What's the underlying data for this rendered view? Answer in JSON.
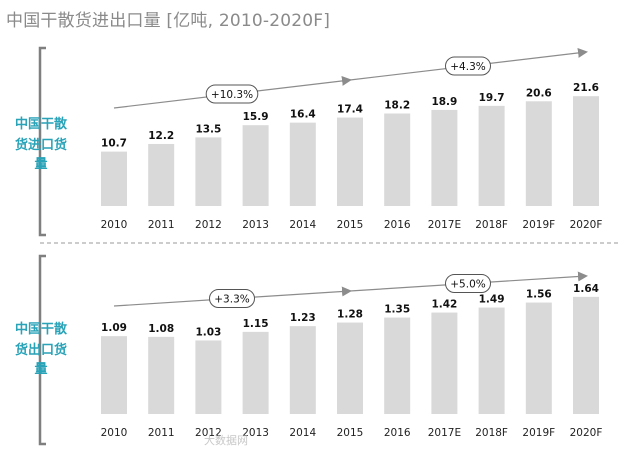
{
  "title": "中国干散货进出口量 [亿吨, 2010-2020F]",
  "watermark": "大数据网",
  "colors": {
    "bar": "#d9d9d9",
    "side_label": "#29a3b8",
    "arrow": "#8c8c8c",
    "bracket": "#7f7f7f",
    "divider": "#9a9a9a"
  },
  "chart_data": [
    {
      "type": "bar",
      "title": "中国干散货进口货量",
      "side_label": "中国干散货进口货量",
      "categories": [
        "2010",
        "2011",
        "2012",
        "2013",
        "2014",
        "2015",
        "2016",
        "2017E",
        "2018F",
        "2019F",
        "2020F"
      ],
      "values": [
        10.7,
        12.2,
        13.5,
        15.9,
        16.4,
        17.4,
        18.2,
        18.9,
        19.7,
        20.6,
        21.6
      ],
      "value_labels": [
        "10.7",
        "12.2",
        "13.5",
        "15.9",
        "16.4",
        "17.4",
        "18.2",
        "18.9",
        "19.7",
        "20.6",
        "21.6"
      ],
      "ylim": [
        0,
        24
      ],
      "growth": [
        {
          "label": "+10.3%",
          "from": "2010",
          "to": "2015"
        },
        {
          "label": "+4.3%",
          "from": "2015",
          "to": "2020F"
        }
      ]
    },
    {
      "type": "bar",
      "title": "中国干散货出口货量",
      "side_label": "中国干散货出口货量",
      "categories": [
        "2010",
        "2011",
        "2012",
        "2013",
        "2014",
        "2015",
        "2016",
        "2017E",
        "2018F",
        "2019F",
        "2020F"
      ],
      "values": [
        1.09,
        1.08,
        1.03,
        1.15,
        1.23,
        1.28,
        1.35,
        1.42,
        1.49,
        1.56,
        1.64
      ],
      "value_labels": [
        "1.09",
        "1.08",
        "1.03",
        "1.15",
        "1.23",
        "1.28",
        "1.35",
        "1.42",
        "1.49",
        "1.56",
        "1.64"
      ],
      "ylim": [
        0,
        1.82
      ],
      "growth": [
        {
          "label": "+3.3%",
          "from": "2010",
          "to": "2015"
        },
        {
          "label": "+5.0%",
          "from": "2015",
          "to": "2020F"
        }
      ]
    }
  ]
}
